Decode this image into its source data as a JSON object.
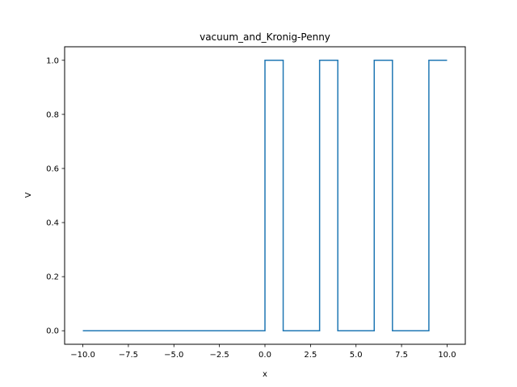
{
  "chart_data": {
    "type": "line",
    "title": "vacuum_and_Kronig-Penny",
    "xlabel": "x",
    "ylabel": "V",
    "xlim": [
      -11.0,
      11.0
    ],
    "ylim": [
      -0.05,
      1.05
    ],
    "grid": false,
    "series_color": "#1f77b4",
    "xticks": [
      -10.0,
      -7.5,
      -5.0,
      -2.5,
      0.0,
      2.5,
      5.0,
      7.5,
      10.0
    ],
    "xtick_labels": [
      "−10.0",
      "−7.5",
      "−5.0",
      "−2.5",
      "0.0",
      "2.5",
      "5.0",
      "7.5",
      "10.0"
    ],
    "yticks": [
      0.0,
      0.2,
      0.4,
      0.6,
      0.8,
      1.0
    ],
    "ytick_labels": [
      "0.0",
      "0.2",
      "0.4",
      "0.6",
      "0.8",
      "1.0"
    ],
    "series": [
      {
        "x": [
          -10,
          0,
          0,
          1,
          1,
          3,
          3,
          4,
          4,
          6,
          6,
          7,
          7,
          9,
          9,
          10
        ],
        "y": [
          0,
          0,
          1,
          1,
          0,
          0,
          1,
          1,
          0,
          0,
          1,
          1,
          0,
          0,
          1,
          1
        ]
      }
    ]
  }
}
